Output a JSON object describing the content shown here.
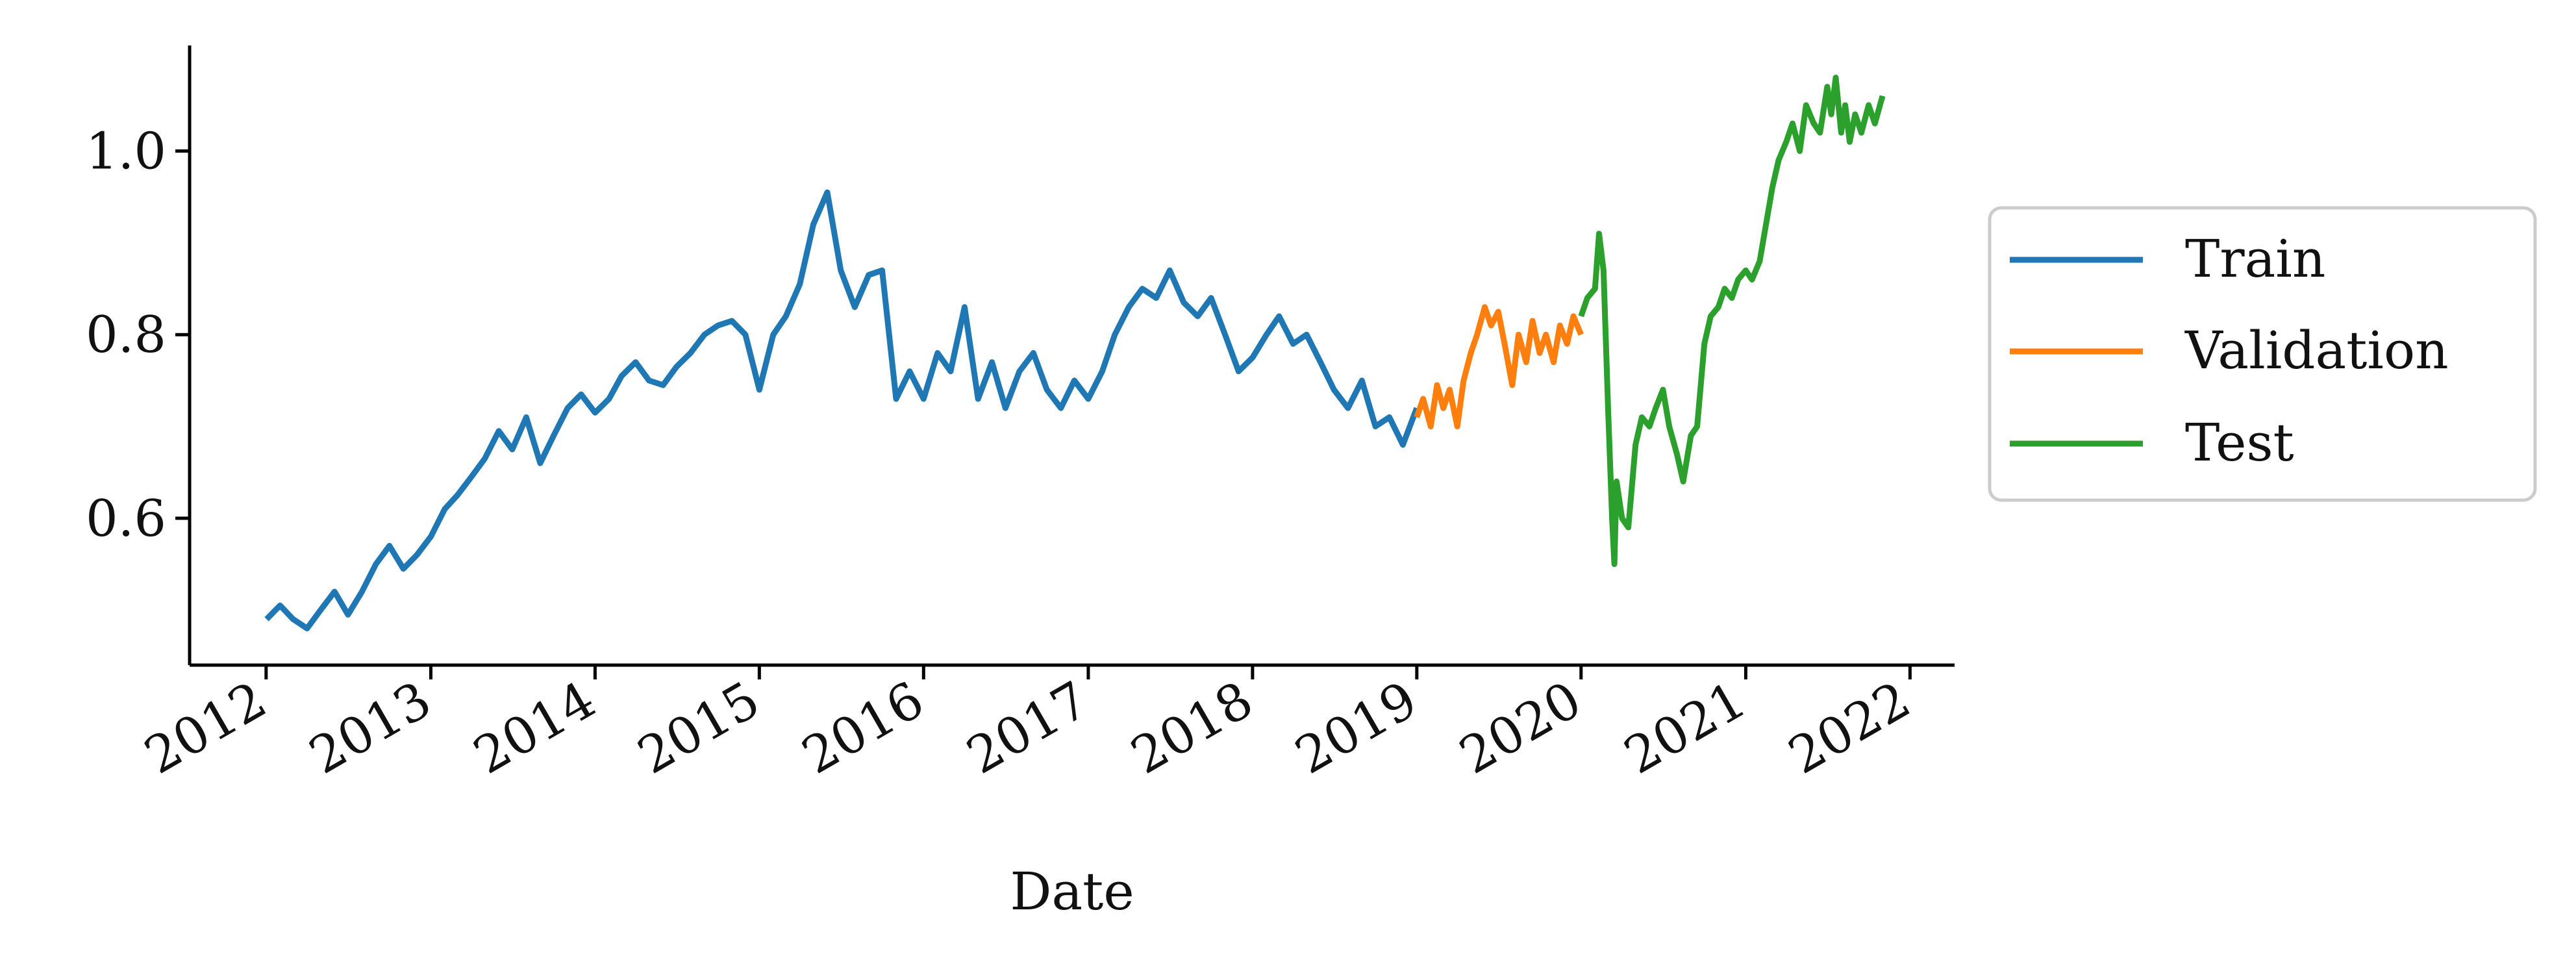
{
  "chart_data": {
    "type": "line",
    "title": "",
    "xlabel": "Date",
    "ylabel": "",
    "xlim": [
      "2011-07-15",
      "2022-04-10"
    ],
    "ylim": [
      0.44,
      1.115
    ],
    "xticks": [
      "2012-01-01",
      "2013-01-01",
      "2014-01-01",
      "2015-01-01",
      "2016-01-01",
      "2017-01-01",
      "2018-01-01",
      "2019-01-01",
      "2020-01-01",
      "2021-01-01",
      "2022-01-01"
    ],
    "xtick_labels": [
      "2012",
      "2013",
      "2014",
      "2015",
      "2016",
      "2017",
      "2018",
      "2019",
      "2020",
      "2021",
      "2022"
    ],
    "yticks": [
      0.6,
      0.8,
      1.0
    ],
    "ytick_labels": [
      "0.6",
      "0.8",
      "1.0"
    ],
    "grid": false,
    "legend_position": "right, outside plot",
    "series": [
      {
        "name": "Train",
        "color": "#1f77b4",
        "x": [
          "2012-01-02",
          "2012-02-01",
          "2012-03-01",
          "2012-04-01",
          "2012-05-01",
          "2012-06-01",
          "2012-07-01",
          "2012-08-01",
          "2012-09-01",
          "2012-10-01",
          "2012-11-01",
          "2012-12-01",
          "2013-01-01",
          "2013-02-01",
          "2013-03-01",
          "2013-04-01",
          "2013-05-01",
          "2013-06-01",
          "2013-07-01",
          "2013-08-01",
          "2013-09-01",
          "2013-10-01",
          "2013-11-01",
          "2013-12-01",
          "2014-01-01",
          "2014-02-01",
          "2014-03-01",
          "2014-04-01",
          "2014-05-01",
          "2014-06-01",
          "2014-07-01",
          "2014-08-01",
          "2014-09-01",
          "2014-10-01",
          "2014-11-01",
          "2014-12-01",
          "2015-01-01",
          "2015-02-01",
          "2015-03-01",
          "2015-04-01",
          "2015-05-01",
          "2015-06-01",
          "2015-07-01",
          "2015-08-01",
          "2015-09-01",
          "2015-10-01",
          "2015-11-01",
          "2015-12-01",
          "2016-01-01",
          "2016-02-01",
          "2016-03-01",
          "2016-04-01",
          "2016-05-01",
          "2016-06-01",
          "2016-07-01",
          "2016-08-01",
          "2016-09-01",
          "2016-10-01",
          "2016-11-01",
          "2016-12-01",
          "2017-01-01",
          "2017-02-01",
          "2017-03-01",
          "2017-04-01",
          "2017-05-01",
          "2017-06-01",
          "2017-07-01",
          "2017-08-01",
          "2017-09-01",
          "2017-10-01",
          "2017-11-01",
          "2017-12-01",
          "2018-01-01",
          "2018-02-01",
          "2018-03-01",
          "2018-04-01",
          "2018-05-01",
          "2018-06-01",
          "2018-07-01",
          "2018-08-01",
          "2018-09-01",
          "2018-10-01",
          "2018-11-01",
          "2018-12-01",
          "2019-01-01"
        ],
        "y": [
          0.49,
          0.505,
          0.49,
          0.48,
          0.5,
          0.52,
          0.495,
          0.52,
          0.55,
          0.57,
          0.545,
          0.56,
          0.58,
          0.61,
          0.625,
          0.645,
          0.665,
          0.695,
          0.675,
          0.71,
          0.66,
          0.69,
          0.72,
          0.735,
          0.715,
          0.73,
          0.755,
          0.77,
          0.75,
          0.745,
          0.765,
          0.78,
          0.8,
          0.81,
          0.815,
          0.8,
          0.74,
          0.8,
          0.82,
          0.855,
          0.92,
          0.955,
          0.87,
          0.83,
          0.865,
          0.87,
          0.73,
          0.76,
          0.73,
          0.78,
          0.76,
          0.83,
          0.73,
          0.77,
          0.72,
          0.76,
          0.78,
          0.74,
          0.72,
          0.75,
          0.73,
          0.76,
          0.8,
          0.83,
          0.85,
          0.84,
          0.87,
          0.835,
          0.82,
          0.84,
          0.8,
          0.76,
          0.775,
          0.8,
          0.82,
          0.79,
          0.8,
          0.77,
          0.74,
          0.72,
          0.75,
          0.7,
          0.71,
          0.68,
          0.72
        ]
      },
      {
        "name": "Validation",
        "color": "#ff7f0e",
        "x": [
          "2019-01-01",
          "2019-01-15",
          "2019-02-01",
          "2019-02-15",
          "2019-03-01",
          "2019-03-15",
          "2019-04-01",
          "2019-04-15",
          "2019-05-01",
          "2019-05-15",
          "2019-06-01",
          "2019-06-15",
          "2019-07-01",
          "2019-07-15",
          "2019-08-01",
          "2019-08-15",
          "2019-09-01",
          "2019-09-15",
          "2019-10-01",
          "2019-10-15",
          "2019-11-01",
          "2019-11-15",
          "2019-12-01",
          "2019-12-15",
          "2020-01-01"
        ],
        "y": [
          0.71,
          0.73,
          0.7,
          0.745,
          0.72,
          0.74,
          0.7,
          0.75,
          0.78,
          0.8,
          0.83,
          0.81,
          0.825,
          0.79,
          0.745,
          0.8,
          0.77,
          0.815,
          0.78,
          0.8,
          0.77,
          0.81,
          0.79,
          0.82,
          0.8
        ]
      },
      {
        "name": "Test",
        "color": "#2ca02c",
        "x": [
          "2020-01-01",
          "2020-01-15",
          "2020-02-01",
          "2020-02-10",
          "2020-02-20",
          "2020-03-01",
          "2020-03-10",
          "2020-03-15",
          "2020-03-20",
          "2020-04-01",
          "2020-04-15",
          "2020-05-01",
          "2020-05-15",
          "2020-06-01",
          "2020-06-15",
          "2020-07-01",
          "2020-07-15",
          "2020-08-01",
          "2020-08-15",
          "2020-09-01",
          "2020-09-15",
          "2020-10-01",
          "2020-10-15",
          "2020-11-01",
          "2020-11-15",
          "2020-12-01",
          "2020-12-15",
          "2021-01-01",
          "2021-01-15",
          "2021-02-01",
          "2021-02-15",
          "2021-03-01",
          "2021-03-15",
          "2021-04-01",
          "2021-04-15",
          "2021-05-01",
          "2021-05-15",
          "2021-06-01",
          "2021-06-15",
          "2021-07-01",
          "2021-07-10",
          "2021-07-20",
          "2021-08-01",
          "2021-08-10",
          "2021-08-20",
          "2021-09-01",
          "2021-09-15",
          "2021-10-01",
          "2021-10-15",
          "2021-11-01"
        ],
        "y": [
          0.82,
          0.84,
          0.85,
          0.91,
          0.87,
          0.72,
          0.6,
          0.55,
          0.64,
          0.6,
          0.59,
          0.68,
          0.71,
          0.7,
          0.72,
          0.74,
          0.7,
          0.67,
          0.64,
          0.69,
          0.7,
          0.79,
          0.82,
          0.83,
          0.85,
          0.84,
          0.86,
          0.87,
          0.86,
          0.88,
          0.92,
          0.96,
          0.99,
          1.01,
          1.03,
          1.0,
          1.05,
          1.03,
          1.02,
          1.07,
          1.04,
          1.08,
          1.02,
          1.05,
          1.01,
          1.04,
          1.02,
          1.05,
          1.03,
          1.06
        ]
      }
    ]
  }
}
